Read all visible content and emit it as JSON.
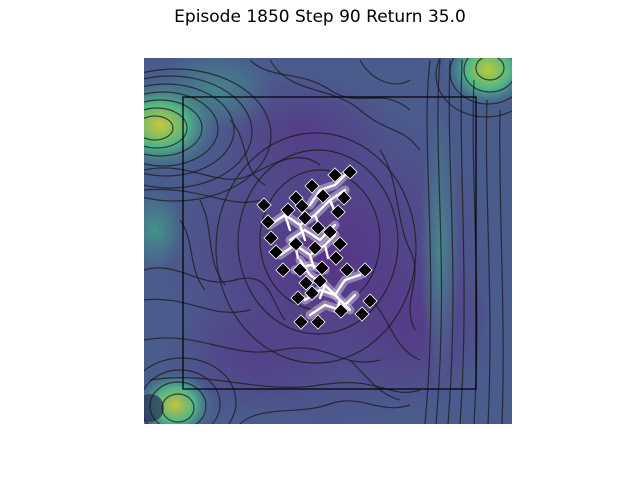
{
  "title": "Episode 1850 Step 90 Return 35.0",
  "colors": {
    "field_low": "#5b3a86",
    "field_mid": "#3e6f8f",
    "field_high": "#42b98a",
    "field_peak": "#b8c93c",
    "contour": "#1a1a1a",
    "arena_border": "#000000",
    "agent_fill": "#000000",
    "agent_edge": "#ffffff",
    "link": "#ffffff",
    "link_glow": "#c9b9d9"
  }
}
